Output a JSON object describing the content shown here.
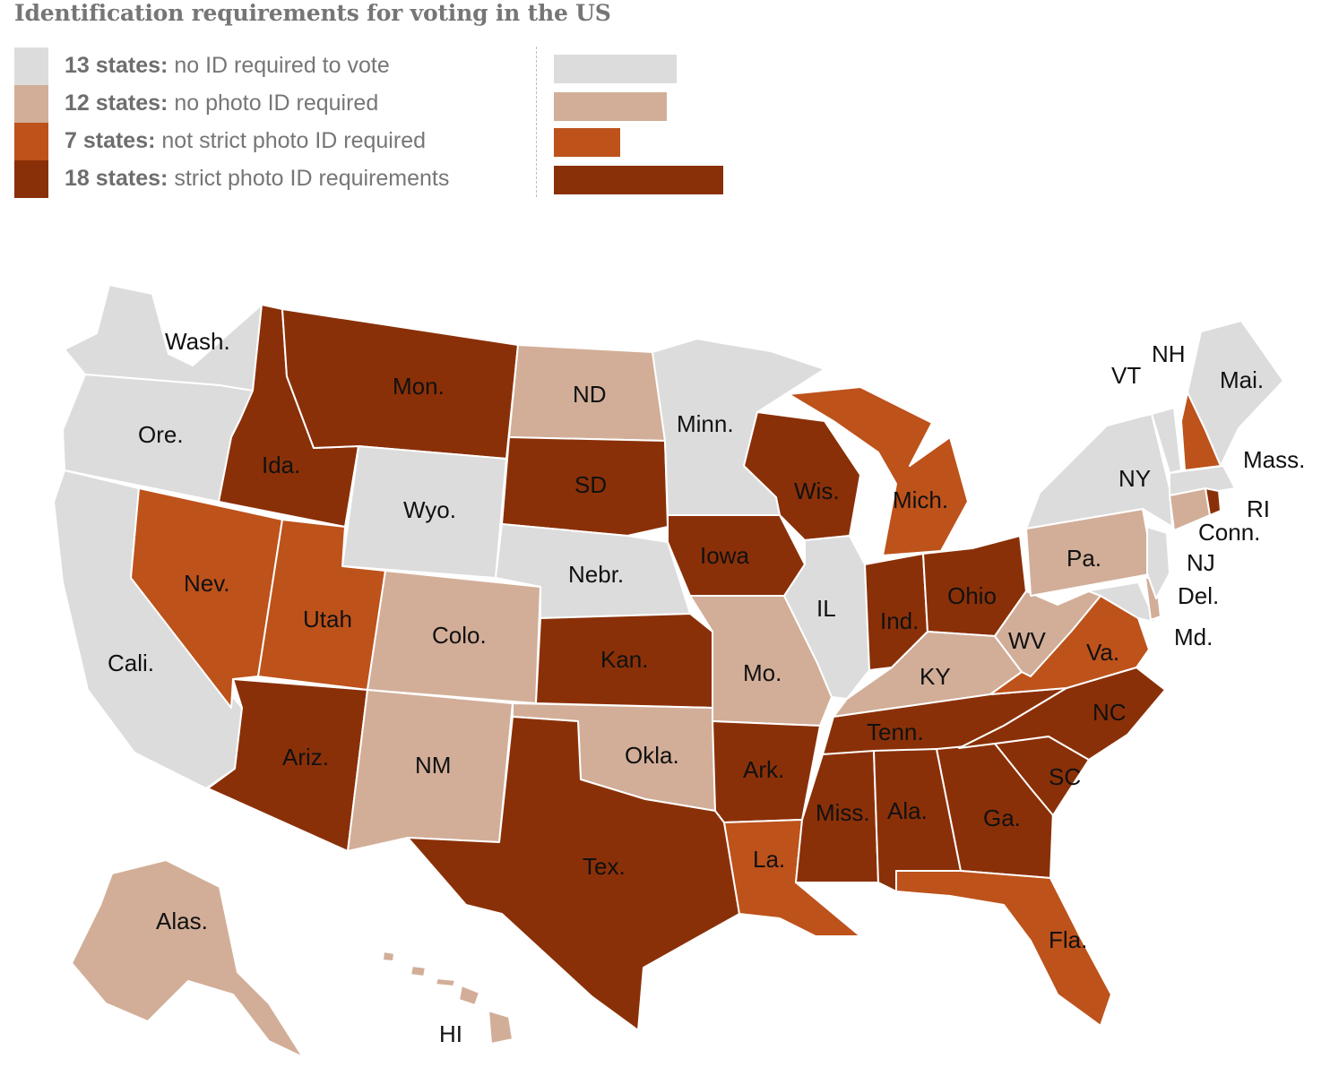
{
  "title": "Identification requirements for voting in the US",
  "colors": {
    "none": "#dcdcdc",
    "no_photo": "#d2ae98",
    "not_strict": "#bd521b",
    "strict": "#8a3008"
  },
  "legend": [
    {
      "count_label": "13 states:",
      "desc": "no ID required to vote",
      "category": "none",
      "value": 13
    },
    {
      "count_label": "12 states:",
      "desc": "no photo ID required",
      "category": "no_photo",
      "value": 12
    },
    {
      "count_label": "7 states:",
      "desc": "not strict photo ID required",
      "category": "not_strict",
      "value": 7
    },
    {
      "count_label": "18 states:",
      "desc": "strict photo ID requirements",
      "category": "strict",
      "value": 18
    }
  ],
  "states": {
    "wa": {
      "label": "Wash.",
      "category": "none"
    },
    "or": {
      "label": "Ore.",
      "category": "none"
    },
    "ca": {
      "label": "Cali.",
      "category": "none"
    },
    "nv": {
      "label": "Nev.",
      "category": "not_strict"
    },
    "id": {
      "label": "Ida.",
      "category": "strict"
    },
    "mt": {
      "label": "Mon.",
      "category": "strict"
    },
    "wy": {
      "label": "Wyo.",
      "category": "none"
    },
    "ut": {
      "label": "Utah",
      "category": "not_strict"
    },
    "az": {
      "label": "Ariz.",
      "category": "strict"
    },
    "co": {
      "label": "Colo.",
      "category": "no_photo"
    },
    "nm": {
      "label": "NM",
      "category": "no_photo"
    },
    "nd": {
      "label": "ND",
      "category": "no_photo"
    },
    "sd": {
      "label": "SD",
      "category": "strict"
    },
    "ne": {
      "label": "Nebr.",
      "category": "none"
    },
    "ks": {
      "label": "Kan.",
      "category": "strict"
    },
    "ok": {
      "label": "Okla.",
      "category": "no_photo"
    },
    "tx": {
      "label": "Tex.",
      "category": "strict"
    },
    "mn": {
      "label": "Minn.",
      "category": "none"
    },
    "ia": {
      "label": "Iowa",
      "category": "strict"
    },
    "mo": {
      "label": "Mo.",
      "category": "no_photo"
    },
    "ar": {
      "label": "Ark.",
      "category": "strict"
    },
    "la": {
      "label": "La.",
      "category": "not_strict"
    },
    "wi": {
      "label": "Wis.",
      "category": "strict"
    },
    "il": {
      "label": "IL",
      "category": "none"
    },
    "mi": {
      "label": "Mich.",
      "category": "not_strict"
    },
    "in": {
      "label": "Ind.",
      "category": "strict"
    },
    "oh": {
      "label": "Ohio",
      "category": "strict"
    },
    "ky": {
      "label": "KY",
      "category": "no_photo"
    },
    "tn": {
      "label": "Tenn.",
      "category": "strict"
    },
    "ms": {
      "label": "Miss.",
      "category": "strict"
    },
    "al": {
      "label": "Ala.",
      "category": "strict"
    },
    "ga": {
      "label": "Ga.",
      "category": "strict"
    },
    "fl": {
      "label": "Fla.",
      "category": "not_strict"
    },
    "sc": {
      "label": "SC",
      "category": "strict"
    },
    "nc": {
      "label": "NC",
      "category": "strict"
    },
    "va": {
      "label": "Va.",
      "category": "not_strict"
    },
    "wv": {
      "label": "WV",
      "category": "no_photo"
    },
    "pa": {
      "label": "Pa.",
      "category": "no_photo"
    },
    "ny": {
      "label": "NY",
      "category": "none"
    },
    "nj": {
      "label": "NJ",
      "category": "none"
    },
    "de": {
      "label": "Del.",
      "category": "no_photo"
    },
    "md": {
      "label": "Md.",
      "category": "none"
    },
    "ct": {
      "label": "Conn.",
      "category": "no_photo"
    },
    "ri": {
      "label": "RI",
      "category": "strict"
    },
    "ma": {
      "label": "Mass.",
      "category": "none"
    },
    "vt": {
      "label": "VT",
      "category": "none"
    },
    "nh": {
      "label": "NH",
      "category": "not_strict"
    },
    "me": {
      "label": "Mai.",
      "category": "none"
    },
    "ak": {
      "label": "Alas.",
      "category": "no_photo"
    },
    "hi": {
      "label": "HI",
      "category": "no_photo"
    }
  }
}
